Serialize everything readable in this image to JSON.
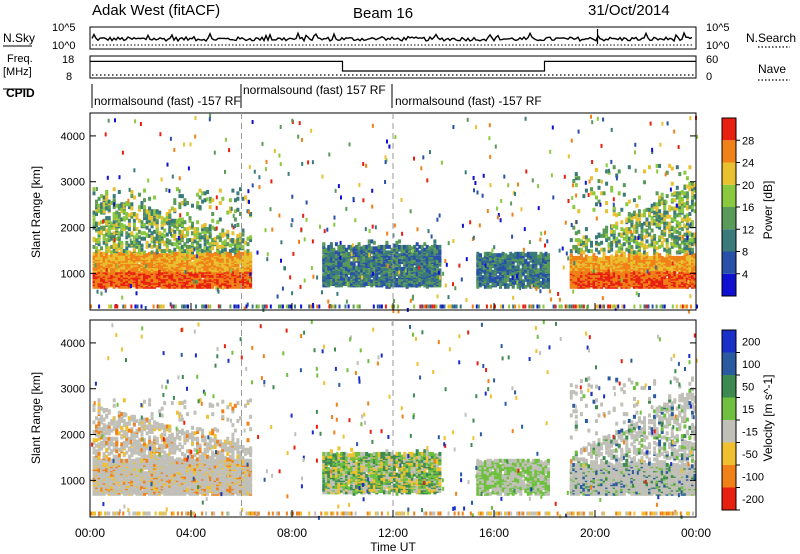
{
  "header": {
    "station": "Adak West (fitACF)",
    "beam": "Beam 16",
    "date": "31/Oct/2014"
  },
  "noise_panel": {
    "left_label": "N.Sky",
    "right_label": "N.Search",
    "left_ticks": [
      "10^5",
      "10^0"
    ],
    "right_ticks": [
      "10^5",
      "10^0"
    ]
  },
  "freq_panel": {
    "left_label": "Freq.",
    "left_unit": "[MHz]",
    "left_ticks": [
      "18",
      "8"
    ],
    "right_label": "Nave",
    "right_ticks": [
      "60",
      "0"
    ],
    "cpid_label": "CPID",
    "cpid_entries": [
      {
        "text": "normalsound (fast) -157 RF",
        "start_hour": 0
      },
      {
        "text": "normalsound (fast) 157 RF",
        "start_hour": 6
      },
      {
        "text": "normalsound (fast) -157 RF",
        "start_hour": 12
      }
    ],
    "frequency_steps": [
      {
        "from_hour": 0,
        "to_hour": 10,
        "level": 0.78
      },
      {
        "from_hour": 10,
        "to_hour": 18,
        "level": 0.3
      },
      {
        "from_hour": 18,
        "to_hour": 24,
        "level": 0.78
      }
    ]
  },
  "chart_data": [
    {
      "type": "heatmap",
      "panel": "power",
      "ylabel": "Slant Range [km]",
      "y_ticks": [
        "1000",
        "2000",
        "3000",
        "4000"
      ],
      "ylim": [
        200,
        4500
      ],
      "colorbar_label": "Power [dB]",
      "colorbar_ticks": [
        "4",
        "8",
        "12",
        "16",
        "20",
        "24",
        "28"
      ],
      "colorbar_colors": [
        "#1010d0",
        "#2850a8",
        "#3a7a7a",
        "#5a9a58",
        "#8ac840",
        "#e8c030",
        "#f08018",
        "#e82010"
      ],
      "clusters": [
        {
          "from_hour": 0,
          "to_hour": 6.3,
          "range_min": 700,
          "range_max": 3000,
          "value": "high (20-28 dB) near 1000 km, mixed above"
        },
        {
          "from_hour": 9.3,
          "to_hour": 13.8,
          "range_min": 700,
          "range_max": 1800,
          "value": "low (4-12 dB)"
        },
        {
          "from_hour": 15.3,
          "to_hour": 18.2,
          "range_min": 700,
          "range_max": 1500,
          "value": "low (4-12 dB)"
        },
        {
          "from_hour": 19.0,
          "to_hour": 24,
          "range_min": 700,
          "range_max": 3500,
          "value": "high (20-28 dB) near 1000 km, mixed above"
        }
      ]
    },
    {
      "type": "heatmap",
      "panel": "velocity",
      "ylabel": "Slant Range [km]",
      "y_ticks": [
        "1000",
        "2000",
        "3000",
        "4000"
      ],
      "ylim": [
        200,
        4500
      ],
      "xlabel": "Time UT",
      "x_ticks": [
        "00:00",
        "04:00",
        "08:00",
        "12:00",
        "16:00",
        "20:00",
        "00:00"
      ],
      "xlim_hours": [
        0,
        24
      ],
      "colorbar_label": "Velocity [m s^-1]",
      "colorbar_ticks": [
        "200",
        "100",
        "50",
        "15",
        "-15",
        "-50",
        "-100",
        "-200"
      ],
      "colorbar_colors": [
        "#1830c8",
        "#2a5aa0",
        "#3c8a50",
        "#70c040",
        "#c0c0b8",
        "#f0c030",
        "#f08018",
        "#e82010"
      ],
      "clusters": [
        {
          "from_hour": 0,
          "to_hour": 6.3,
          "range_min": 700,
          "range_max": 2800,
          "value": "ground scatter with some -15 to -50 m/s"
        },
        {
          "from_hour": 9.3,
          "to_hour": 13.8,
          "range_min": 700,
          "range_max": 1800,
          "value": "mixed -50 to +50 m/s"
        },
        {
          "from_hour": 15.3,
          "to_hour": 18.2,
          "range_min": 700,
          "range_max": 1500,
          "value": "mixed -15 to +50 m/s"
        },
        {
          "from_hour": 19.0,
          "to_hour": 24,
          "range_min": 700,
          "range_max": 3400,
          "value": "ground scatter with some +15 to +100 m/s"
        }
      ]
    }
  ]
}
